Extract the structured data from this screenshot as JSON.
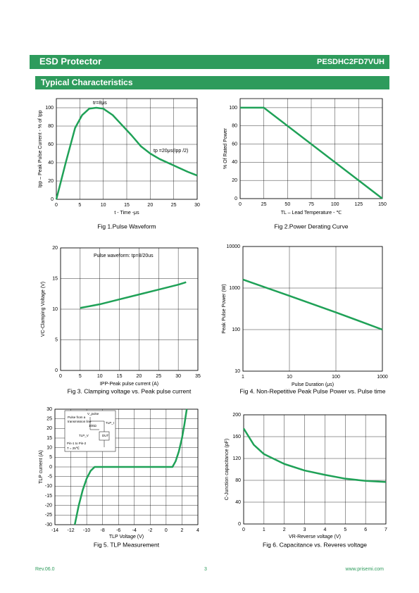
{
  "header": {
    "left": "ESD Protector",
    "right": "PESDHC2FD7VUH"
  },
  "section_title": "Typical Characteristics",
  "footer": {
    "left": "Rev.06.0",
    "center": "3",
    "right": "www.prisemi.com"
  },
  "chart_data": [
    {
      "type": "line",
      "title": "Fig 1.Pulse Waveform",
      "x_label": "t - Time -μs",
      "y_label": "Ipp – Peak Pulse Current - % of Ipp",
      "xlim": [
        0,
        30
      ],
      "ylim": [
        0,
        110
      ],
      "xticks": [
        0,
        5,
        10,
        15,
        20,
        25,
        30
      ],
      "yticks": [
        0,
        20,
        40,
        60,
        80,
        100
      ],
      "grid": true,
      "annotations": [
        "tr=8μs",
        "tp =20μs(Ipp /2)"
      ],
      "series": [
        {
          "color": "#1fa157",
          "x": [
            0,
            2,
            4,
            5.5,
            7,
            8.5,
            10,
            12,
            14,
            16,
            18,
            20,
            22,
            25,
            28,
            30
          ],
          "values": [
            0,
            40,
            78,
            92,
            99,
            100,
            99,
            92,
            81,
            70,
            58,
            50,
            44,
            37,
            30,
            26
          ]
        }
      ]
    },
    {
      "type": "line",
      "title": "Fig 2.Power Derating Curve",
      "x_label": "TL – Lead Temperature - ℃",
      "y_label": "% Of Rated Power",
      "xlim": [
        0,
        150
      ],
      "ylim": [
        0,
        110
      ],
      "xticks": [
        0,
        25,
        50,
        75,
        100,
        125,
        150
      ],
      "yticks": [
        0,
        20,
        40,
        60,
        80,
        100
      ],
      "grid": true,
      "series": [
        {
          "color": "#1fa157",
          "x": [
            0,
            25,
            150
          ],
          "values": [
            100,
            100,
            0
          ]
        }
      ]
    },
    {
      "type": "line",
      "title": "Fig 3. Clamping voltage vs. Peak pulse current",
      "x_label": "IPP-Peak pulse current (A)",
      "y_label": "VC-Clamping Voltage (V)",
      "xlim": [
        0,
        35
      ],
      "ylim": [
        0,
        20
      ],
      "xticks": [
        0,
        5,
        10,
        15,
        20,
        25,
        30,
        35
      ],
      "yticks": [
        0,
        5,
        10,
        15,
        20
      ],
      "grid": true,
      "annotations": [
        "Pulse waveform: tp=8/20us"
      ],
      "series": [
        {
          "color": "#1fa157",
          "x": [
            5,
            10,
            15,
            20,
            25,
            30,
            32
          ],
          "values": [
            10.2,
            10.8,
            11.6,
            12.4,
            13.2,
            14,
            14.4
          ]
        }
      ]
    },
    {
      "type": "line",
      "title": "Fig 4. Non-Repetitive Peak Pulse Power vs. Pulse time",
      "x_label": "Pulse Duration (μs)",
      "y_label": "Peak Pulse Power (W)",
      "xscale": "log",
      "yscale": "log",
      "xlim": [
        1,
        1000
      ],
      "ylim": [
        10,
        10000
      ],
      "xticks": [
        1,
        10,
        100,
        1000
      ],
      "yticks": [
        10,
        100,
        1000,
        10000
      ],
      "grid": true,
      "series": [
        {
          "color": "#1fa157",
          "x": [
            1,
            10,
            100,
            1000
          ],
          "values": [
            1600,
            650,
            260,
            100
          ]
        }
      ]
    },
    {
      "type": "line",
      "title": "Fig 5. TLP Measurement",
      "x_label": "TLP Voltage (V)",
      "y_label": "TLP current (A)",
      "xlim": [
        -14,
        4
      ],
      "ylim": [
        -30,
        30
      ],
      "xticks": [
        -14,
        -12,
        -10,
        -8,
        -6,
        -4,
        -2,
        0,
        2,
        4
      ],
      "yticks": [
        -30,
        -25,
        -20,
        -15,
        -10,
        -5,
        0,
        5,
        10,
        15,
        20,
        25,
        30
      ],
      "grid": true,
      "inset_labels": [
        "V_pulse",
        "Pulse from a",
        "transmission line",
        "100Ω",
        "TLP_I",
        "TLP_V",
        "DUT",
        "Pin-1 to Pin-2",
        "T = 25℃"
      ],
      "series": [
        {
          "color": "#1fa157",
          "x": [
            -11.5,
            -11,
            -10.5,
            -10,
            -9.5,
            -9,
            0.8,
            1.2,
            1.6,
            2,
            2.3,
            2.6
          ],
          "values": [
            -30,
            -20,
            -12,
            -6,
            -2,
            0,
            0,
            3,
            8,
            15,
            22,
            30
          ]
        }
      ]
    },
    {
      "type": "line",
      "title": "Fig 6. Capacitance vs. Reveres voltage",
      "x_label": "VR-Reverse voltage (V)",
      "y_label": "C-Junction capacitance (pF)",
      "xlim": [
        0,
        7
      ],
      "ylim": [
        0,
        200
      ],
      "xticks": [
        0,
        1,
        2,
        3,
        4,
        5,
        6,
        7
      ],
      "yticks": [
        0,
        40,
        80,
        120,
        160,
        200
      ],
      "grid": true,
      "series": [
        {
          "color": "#1fa157",
          "x": [
            0,
            0.5,
            1,
            2,
            3,
            4,
            5,
            6,
            7
          ],
          "values": [
            175,
            145,
            128,
            110,
            98,
            90,
            83,
            79,
            77
          ]
        }
      ]
    }
  ]
}
